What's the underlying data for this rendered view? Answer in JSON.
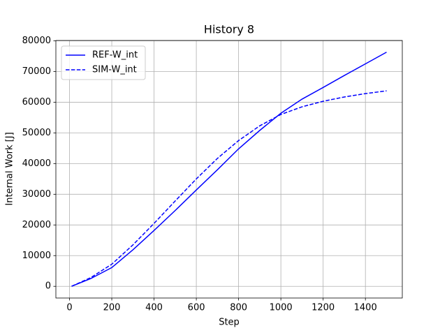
{
  "chart_data": {
    "type": "line",
    "title": "History 8",
    "xlabel": "Step",
    "ylabel": "Internal Work [J]",
    "x": [
      10,
      100,
      200,
      300,
      400,
      500,
      600,
      700,
      800,
      900,
      1000,
      1100,
      1200,
      1300,
      1400,
      1500
    ],
    "series": [
      {
        "name": "REF-W_int",
        "color": "#0000ff",
        "dash": false,
        "values": [
          0,
          2500,
          6100,
          11900,
          18200,
          24700,
          31400,
          38000,
          44800,
          50800,
          56400,
          61000,
          64800,
          68700,
          72500,
          76300
        ]
      },
      {
        "name": "SIM-W_int",
        "color": "#0000ff",
        "dash": true,
        "values": [
          0,
          2800,
          7200,
          13500,
          20500,
          27800,
          35000,
          41700,
          47500,
          52300,
          56000,
          58500,
          60300,
          61700,
          62800,
          63700
        ]
      }
    ],
    "xlim": [
      -64.5,
      1574.5
    ],
    "xticks": [
      0,
      200,
      400,
      600,
      800,
      1000,
      1200,
      1400
    ],
    "ylim": [
      -3815,
      80115
    ],
    "yticks": [
      0,
      10000,
      20000,
      30000,
      40000,
      50000,
      60000,
      70000,
      80000
    ],
    "grid": true,
    "legend": "upper-left"
  }
}
